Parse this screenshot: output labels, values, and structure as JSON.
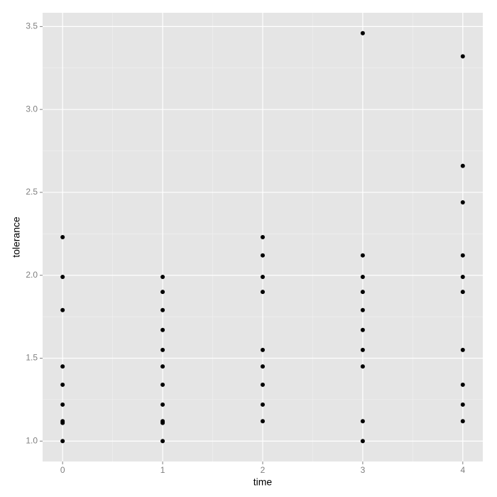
{
  "chart_data": {
    "type": "scatter",
    "x_label": "time",
    "y_label": "tolerance",
    "color": "#000000",
    "xlim": [
      -0.2,
      4.2
    ],
    "xticks": [
      0,
      1,
      2,
      3,
      4
    ],
    "ylim": [
      0.877,
      3.583
    ],
    "yticks": [
      {
        "value": 1.0,
        "label": "1.0"
      },
      {
        "value": 1.5,
        "label": "1.5"
      },
      {
        "value": 2.0,
        "label": "2.0"
      },
      {
        "value": 2.5,
        "label": "2.5"
      },
      {
        "value": 3.0,
        "label": "3.0"
      },
      {
        "value": 3.5,
        "label": "3.5"
      }
    ],
    "grid": true,
    "series": [
      {
        "name": null,
        "color": "#000000",
        "x": [
          0,
          0,
          0,
          0,
          0,
          0,
          0,
          0,
          0,
          1,
          1,
          1,
          1,
          1,
          1,
          1,
          1,
          1,
          1,
          1,
          2,
          2,
          2,
          2,
          2,
          2,
          2,
          2,
          2,
          3,
          3,
          3,
          3,
          3,
          3,
          3,
          3,
          3,
          3,
          4,
          4,
          4,
          4,
          4,
          4,
          4,
          4,
          4,
          4
        ],
        "values": [
          2.23,
          1.99,
          1.79,
          1.45,
          1.34,
          1.22,
          1.12,
          1.11,
          1.0,
          1.99,
          1.9,
          1.79,
          1.67,
          1.55,
          1.45,
          1.34,
          1.22,
          1.12,
          1.11,
          1.0,
          2.23,
          2.12,
          1.99,
          1.9,
          1.55,
          1.45,
          1.34,
          1.22,
          1.12,
          3.46,
          2.12,
          1.99,
          1.9,
          1.79,
          1.67,
          1.55,
          1.45,
          1.12,
          1.0,
          3.32,
          2.66,
          2.44,
          2.12,
          1.99,
          1.9,
          1.55,
          1.34,
          1.22,
          1.12
        ]
      }
    ]
  }
}
